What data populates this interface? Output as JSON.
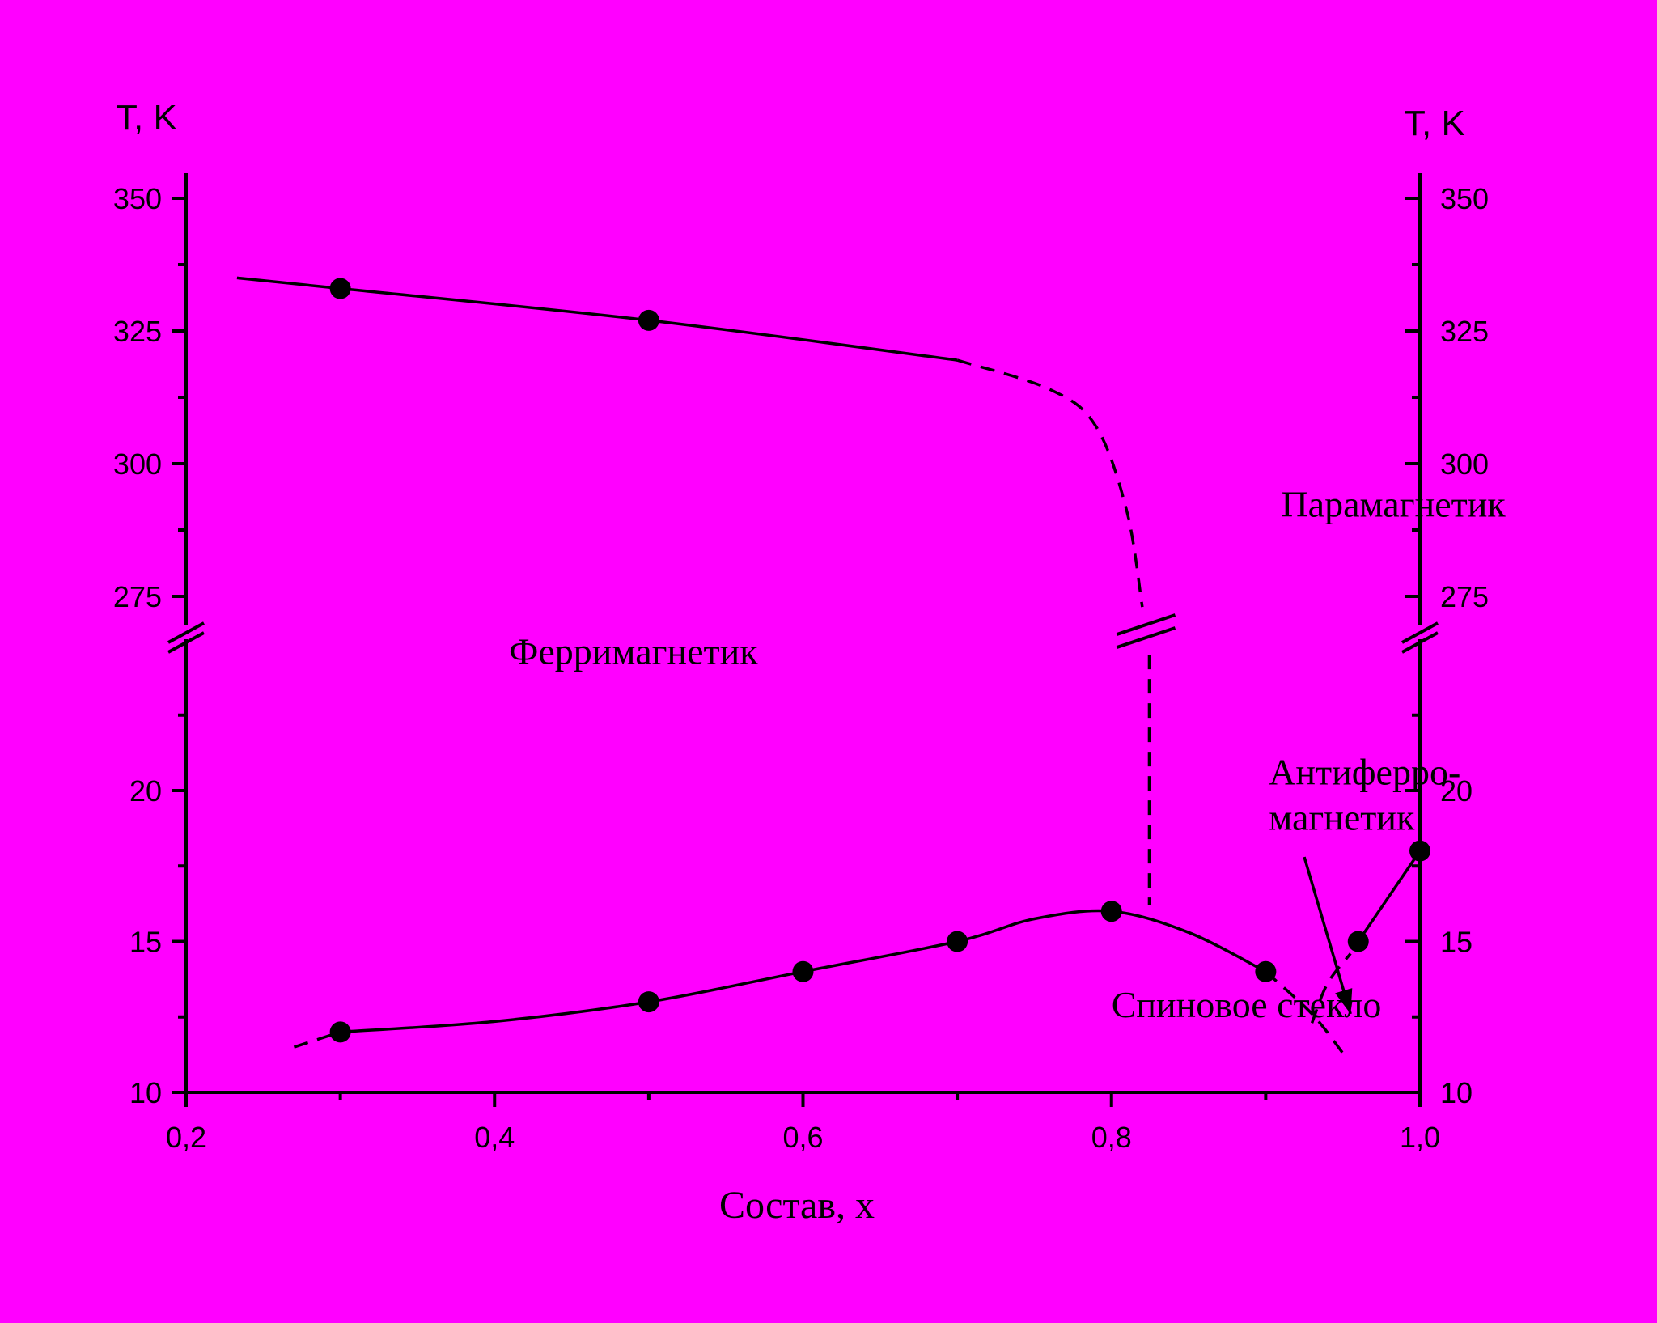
{
  "background": "#ff00ff",
  "chart_data": {
    "type": "line",
    "xlabel": "Состав, x",
    "ylabel_left": "T, K",
    "ylabel_right": "T, K",
    "xlim": [
      0.2,
      1.0
    ],
    "x_ticks": [
      "0,2",
      "0,4",
      "0,6",
      "0,8",
      "1,0"
    ],
    "y_axis_broken": true,
    "ylim_upper": [
      270,
      355
    ],
    "ylim_lower": [
      10,
      25
    ],
    "y_ticks_upper": [
      "275",
      "300",
      "325",
      "350"
    ],
    "y_ticks_lower": [
      "10",
      "15",
      "20"
    ],
    "grid": false,
    "series": [
      {
        "curve": "ferrimagnetic-paramagnetic boundary",
        "points": [
          {
            "x": 0.3,
            "y": 333
          },
          {
            "x": 0.5,
            "y": 327
          }
        ],
        "solid_line": [
          [
            0.233,
            335
          ],
          [
            0.3,
            333
          ],
          [
            0.5,
            327
          ],
          [
            0.7,
            319.5
          ]
        ],
        "dashed_line": [
          [
            0.7,
            319.5
          ],
          [
            0.76,
            314
          ],
          [
            0.79,
            307
          ],
          [
            0.81,
            291
          ],
          [
            0.82,
            273
          ]
        ],
        "dashed_lower": [
          [
            0.8245,
            24.5
          ],
          [
            0.8245,
            16.2
          ]
        ]
      },
      {
        "curve": "spin glass boundary",
        "points": [
          {
            "x": 0.3,
            "y": 12
          },
          {
            "x": 0.5,
            "y": 13
          },
          {
            "x": 0.6,
            "y": 14
          },
          {
            "x": 0.7,
            "y": 15
          },
          {
            "x": 0.8,
            "y": 16
          },
          {
            "x": 0.9,
            "y": 14
          }
        ],
        "solid_line": [
          [
            0.3,
            12
          ],
          [
            0.4,
            12.35
          ],
          [
            0.5,
            13
          ],
          [
            0.6,
            14
          ],
          [
            0.7,
            15
          ],
          [
            0.75,
            15.75
          ],
          [
            0.8,
            16
          ],
          [
            0.85,
            15.3
          ],
          [
            0.9,
            14
          ]
        ],
        "dashed_start": [
          [
            0.27,
            11.5
          ],
          [
            0.3,
            12
          ]
        ],
        "dashed_end": [
          [
            0.9,
            14
          ],
          [
            0.93,
            12.6
          ],
          [
            0.95,
            11.3
          ]
        ]
      },
      {
        "curve": "antiferromagnetic boundary",
        "points": [
          {
            "x": 0.96,
            "y": 15
          },
          {
            "x": 1.0,
            "y": 18
          }
        ],
        "solid_line": [
          [
            0.96,
            15
          ],
          [
            1.0,
            18
          ]
        ],
        "dashed_line": [
          [
            0.93,
            12.3
          ],
          [
            0.94,
            13.6
          ],
          [
            0.955,
            14.6
          ]
        ]
      }
    ],
    "annotations": [
      {
        "text": "Парамагнетик",
        "x": 0.91,
        "y": 290
      },
      {
        "text": "Ферримагнетик",
        "x": 0.49,
        "y": 24.2
      },
      {
        "text": "Антиферро-",
        "x": 0.902,
        "y": 20.2
      },
      {
        "text": "магнетик",
        "x": 0.902,
        "y": 18.7
      },
      {
        "text": "Спиновое стекло",
        "x": 0.8,
        "y": 12.5
      }
    ],
    "arrow": {
      "from": [
        0.925,
        17.8
      ],
      "to": [
        0.955,
        12.6
      ]
    }
  }
}
